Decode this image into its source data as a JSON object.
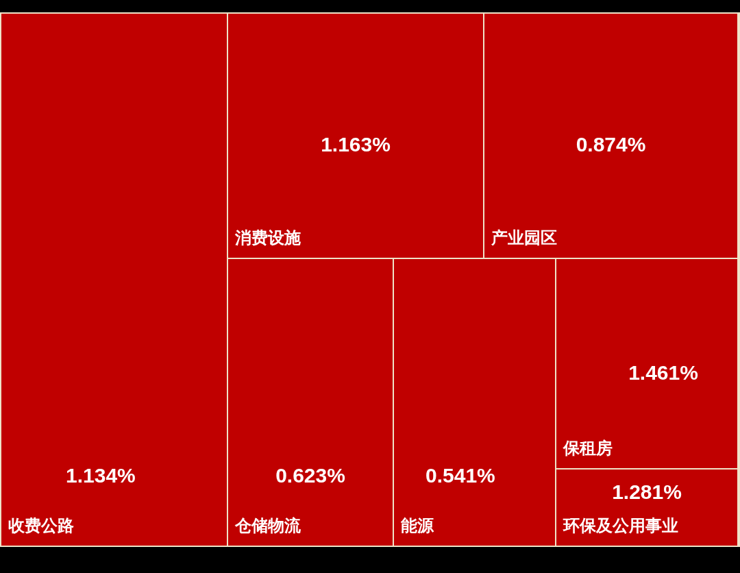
{
  "chart_data": {
    "type": "other",
    "categories": [
      "收费公路",
      "消费设施",
      "产业园区",
      "仓储物流",
      "能源",
      "保租房",
      "环保及公用事业"
    ],
    "values": [
      1.134,
      1.163,
      0.874,
      0.623,
      0.541,
      1.461,
      1.281
    ],
    "value_labels": [
      "1.134%",
      "1.163%",
      "0.874%",
      "0.623%",
      "0.541%",
      "1.461%",
      "1.281%"
    ],
    "colors": [
      "#c00000",
      "#c00000",
      "#c00000",
      "#c00000",
      "#c00000",
      "#c00000",
      "#c00000"
    ]
  }
}
